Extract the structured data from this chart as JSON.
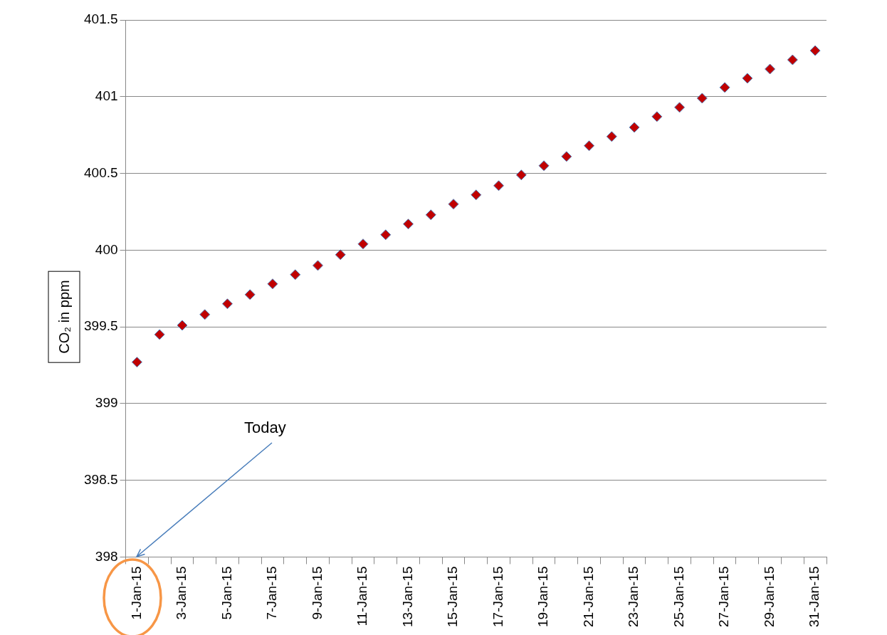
{
  "chart_data": {
    "type": "scatter",
    "ylabel": "CO₂ in ppm",
    "categories": [
      "1-Jan-15",
      null,
      "3-Jan-15",
      null,
      "5-Jan-15",
      null,
      "7-Jan-15",
      null,
      "9-Jan-15",
      null,
      "11-Jan-15",
      null,
      "13-Jan-15",
      null,
      "15-Jan-15",
      null,
      "17-Jan-15",
      null,
      "19-Jan-15",
      null,
      "21-Jan-15",
      null,
      "23-Jan-15",
      null,
      "25-Jan-15",
      null,
      "27-Jan-15",
      null,
      "29-Jan-15",
      null,
      "31-Jan-15"
    ],
    "series": [
      {
        "color": "#c00000",
        "values": [
          399.27,
          399.45,
          399.51,
          399.58,
          399.65,
          399.71,
          399.78,
          399.84,
          399.9,
          399.97,
          400.04,
          400.1,
          400.17,
          400.23,
          400.3,
          400.36,
          400.42,
          400.49,
          400.55,
          400.61,
          400.68,
          400.74,
          400.8,
          400.87,
          400.93,
          400.99,
          401.06,
          401.12,
          401.18,
          401.24,
          401.3
        ]
      }
    ],
    "ylim": [
      398,
      401.5
    ],
    "yticks": [
      398,
      398.5,
      399,
      399.5,
      400,
      400.5,
      401,
      401.5
    ],
    "grid": "y",
    "legend": false,
    "marker": "diamond",
    "annotations": [
      "Today"
    ]
  }
}
